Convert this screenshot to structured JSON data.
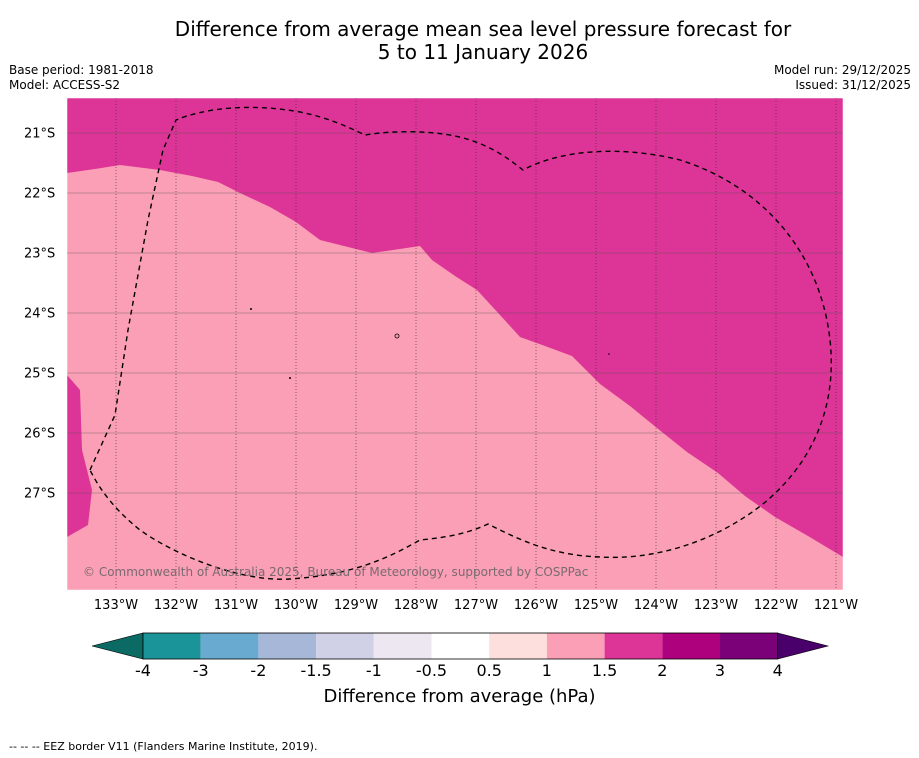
{
  "title": {
    "line1": "Difference from average mean sea level pressure forecast for",
    "line2": "5 to 11 January 2026"
  },
  "meta": {
    "base_period": "Base period: 1981-2018",
    "model": "Model: ACCESS-S2",
    "model_run": "Model run: 29/12/2025",
    "issued": "Issued: 31/12/2025"
  },
  "map": {
    "lon_range": [
      -133.8,
      -120.9
    ],
    "lat_range": [
      -28.6,
      -20.4
    ],
    "x_ticks": [
      "133°W",
      "132°W",
      "131°W",
      "130°W",
      "129°W",
      "128°W",
      "127°W",
      "126°W",
      "125°W",
      "124°W",
      "123°W",
      "122°W",
      "121°W"
    ],
    "y_ticks": [
      "21°S",
      "22°S",
      "23°S",
      "24°S",
      "25°S",
      "26°S",
      "27°S"
    ],
    "legend_categories": {
      "upper_region": "1.5 to 2",
      "lower_region": "1 to 1.5"
    },
    "copyright": "© Commonwealth of Australia 2025, Bureau of Meteorology, supported by COSPPac"
  },
  "colorbar": {
    "ticks": [
      "-4",
      "-3",
      "-2",
      "-1.5",
      "-1",
      "-0.5",
      "0.5",
      "1",
      "1.5",
      "2",
      "3",
      "4"
    ],
    "colors": [
      "#0b6a64",
      "#1a9399",
      "#69aad1",
      "#a6b7d8",
      "#d0d1e6",
      "#ece7f1",
      "#ffffff",
      "#fde0dd",
      "#fa9fb5",
      "#dd3497",
      "#ae017e",
      "#7a0177",
      "#49006a"
    ],
    "label": "Difference from average (hPa)"
  },
  "footnote": "--  --  -- EEZ border V11 (Flanders Marine Institute, 2019).",
  "colors": {
    "high": "#dd3497",
    "mid": "#fa9fb5",
    "grid": "#333333"
  }
}
